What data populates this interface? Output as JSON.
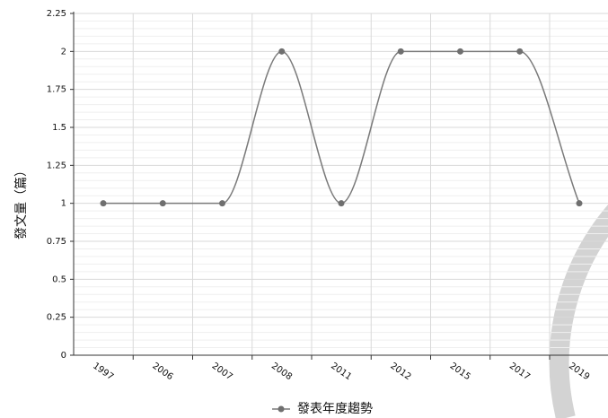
{
  "chart_data": {
    "type": "line",
    "categories": [
      "1997",
      "2006",
      "2007",
      "2008",
      "2011",
      "2012",
      "2015",
      "2017",
      "2019"
    ],
    "series": [
      {
        "name": "發表年度趨勢",
        "values": [
          1,
          1,
          1,
          2,
          1,
          2,
          2,
          2,
          1
        ]
      }
    ],
    "ylabel": "發文量（篇）",
    "xlabel": "",
    "ylim": [
      0,
      2.25
    ],
    "yticks": [
      "0",
      "0.25",
      "0.5",
      "0.75",
      "1",
      "1.25",
      "1.5",
      "1.75",
      "2",
      "2.25"
    ],
    "grid": true,
    "legend": "bottom-center",
    "colors": {
      "line": "#7a7a7a",
      "marker": "#6f6f6f",
      "grid_major": "#d9d9d9",
      "grid_minor": "#efefef",
      "axis": "#333333",
      "watermark": "#cfcfcf"
    }
  }
}
